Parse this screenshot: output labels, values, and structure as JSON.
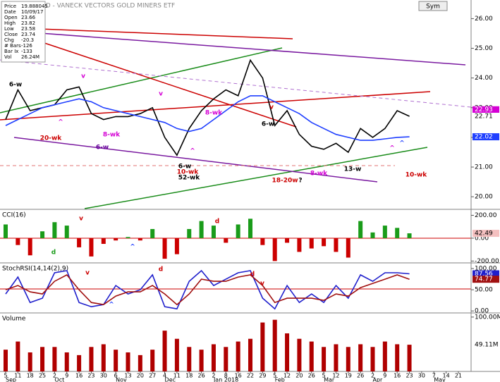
{
  "chart_data": [
    {
      "type": "line",
      "title": "GDX DAILY,D - VANECK VECTORS GOLD MINERS ETF",
      "info": [
        [
          "Price",
          "19.888045"
        ],
        [
          "Date",
          "10/09/17"
        ],
        [
          "Open",
          "23.66"
        ],
        [
          "High",
          "23.82"
        ],
        [
          "Low",
          "23.58"
        ],
        [
          "Close",
          "23.74"
        ],
        [
          "Chg",
          "-20.3"
        ],
        [
          "# Bars",
          "-126"
        ],
        [
          "Bar Ix",
          "-133"
        ],
        [
          "Vol",
          "26.24M"
        ]
      ],
      "button": "Sym",
      "ylim": [
        19.6,
        26.2
      ],
      "yticks": [
        {
          "value": 20,
          "label": "20.00"
        },
        {
          "value": 21,
          "label": "21.00"
        },
        {
          "value": 22,
          "label": "22.00"
        },
        {
          "value": 23,
          "label": "23.00"
        },
        {
          "value": 24,
          "label": "24.00"
        },
        {
          "value": 25,
          "label": "25.00"
        },
        {
          "value": 26,
          "label": "26.00"
        }
      ],
      "series": [
        {
          "color": "#000000",
          "values": [
            22.6,
            23.6,
            22.9,
            23.0,
            23.1,
            23.6,
            23.7,
            22.8,
            22.6,
            22.7,
            22.7,
            22.8,
            23.0,
            22.0,
            21.4,
            22.3,
            22.9,
            23.3,
            23.6,
            23.4,
            24.6,
            24.0,
            22.4,
            22.9,
            22.1,
            21.7,
            21.6,
            21.8,
            21.5,
            22.3,
            22.0,
            22.3,
            22.9,
            22.71,
            null,
            null,
            null,
            null
          ]
        },
        {
          "color": "#1f3fff",
          "values": [
            22.4,
            22.6,
            22.8,
            23.0,
            23.1,
            23.2,
            23.3,
            23.2,
            23.0,
            22.9,
            22.8,
            22.7,
            22.6,
            22.5,
            22.3,
            22.2,
            22.3,
            22.6,
            22.9,
            23.2,
            23.4,
            23.4,
            23.2,
            23.0,
            22.8,
            22.5,
            22.3,
            22.1,
            22.0,
            21.9,
            21.9,
            21.95,
            22.0,
            22.02,
            null,
            null,
            null,
            null
          ]
        }
      ],
      "markers": [
        {
          "value": 22.93,
          "label": "22.93",
          "color": "#d400d4"
        },
        {
          "value": 22.71,
          "label": "22.71",
          "color": "#ffffff"
        },
        {
          "value": 22.02,
          "label": "22.02",
          "color": "#1f3fff"
        }
      ],
      "annotations": [
        {
          "text": "6-w",
          "color": "#000000"
        },
        {
          "text": "^",
          "color": "#d400d4"
        },
        {
          "text": "20-wk",
          "color": "#cc0000"
        },
        {
          "text": "8-wk",
          "color": "#d400d4"
        },
        {
          "text": "6-w",
          "color": "#660099"
        },
        {
          "text": "6-w",
          "color": "#000000"
        },
        {
          "text": "10-wk",
          "color": "#cc0000"
        },
        {
          "text": "52-wk",
          "color": "#000000"
        },
        {
          "text": "^",
          "color": "#d400d4"
        },
        {
          "text": "v",
          "color": "#d400d4"
        },
        {
          "text": "v",
          "color": "#d400d4"
        },
        {
          "text": "8-wk",
          "color": "#d400d4"
        },
        {
          "text": "6-w",
          "color": "#000000"
        },
        {
          "text": "18-20w",
          "color": "#cc0000"
        },
        {
          "text": "?",
          "color": "#000000"
        },
        {
          "text": "8-wk",
          "color": "#d400d4"
        },
        {
          "text": "13-w",
          "color": "#000000"
        },
        {
          "text": "10-wk",
          "color": "#cc0000"
        },
        {
          "text": "^",
          "color": "#1f3fff"
        },
        {
          "text": "^",
          "color": "#d400d4"
        },
        {
          "text": "v",
          "color": "#cc0000"
        }
      ]
    },
    {
      "type": "bar",
      "title": "CCI(16)",
      "ylim": [
        -210,
        240
      ],
      "yticks": [
        {
          "value": 200,
          "label": "200.00"
        },
        {
          "value": 0,
          "label": "0.00"
        },
        {
          "value": -200,
          "label": "-200.00"
        }
      ],
      "colors": {
        "positive": "#1a9c1a",
        "negative": "#cc0000"
      },
      "values": [
        120,
        -60,
        -150,
        60,
        140,
        110,
        -80,
        -160,
        -50,
        -20,
        10,
        -20,
        80,
        -180,
        -140,
        80,
        150,
        110,
        -40,
        120,
        170,
        -60,
        -200,
        -40,
        -120,
        -90,
        -70,
        -120,
        -170,
        150,
        50,
        110,
        90,
        42.49,
        null,
        null,
        null,
        null
      ],
      "markers": [
        {
          "value": 42.49,
          "label": "42.49",
          "color": "#f4c0c0"
        }
      ],
      "annotations": [
        {
          "text": "v",
          "color": "#cc0000"
        },
        {
          "text": "d",
          "color": "#1a9c1a"
        },
        {
          "text": "^",
          "color": "#1f3fff"
        },
        {
          "text": "d",
          "color": "#cc0000"
        }
      ]
    },
    {
      "type": "line",
      "title": "StochRSI(14,14(2),9)",
      "ylim": [
        -3,
        110
      ],
      "yticks": [
        {
          "value": 100,
          "label": "100.00"
        },
        {
          "value": 50,
          "label": "50.00"
        },
        {
          "value": 0,
          "label": "0.00"
        }
      ],
      "series": [
        {
          "color": "#1f1fcc",
          "values": [
            40,
            80,
            20,
            30,
            90,
            95,
            20,
            10,
            15,
            60,
            40,
            50,
            85,
            10,
            5,
            70,
            95,
            60,
            75,
            90,
            95,
            30,
            5,
            60,
            20,
            40,
            20,
            60,
            30,
            85,
            70,
            90,
            90,
            87.56,
            null,
            null,
            null,
            null
          ]
        },
        {
          "color": "#a01010",
          "values": [
            50,
            60,
            45,
            40,
            70,
            85,
            50,
            20,
            15,
            35,
            45,
            45,
            60,
            40,
            15,
            40,
            75,
            70,
            70,
            80,
            85,
            60,
            20,
            30,
            30,
            30,
            25,
            40,
            35,
            55,
            65,
            75,
            85,
            74.77,
            null,
            null,
            null,
            null
          ]
        }
      ],
      "markers": [
        {
          "value": 87.56,
          "label": "87.56",
          "color": "#1f1fcc"
        },
        {
          "value": 74.77,
          "label": "74.77",
          "color": "#a01010"
        }
      ],
      "annotations": [
        {
          "text": "v",
          "color": "#cc0000"
        },
        {
          "text": "d",
          "color": "#cc0000"
        },
        {
          "text": "^",
          "color": "#1f3fff"
        },
        {
          "text": "d",
          "color": "#cc0000"
        },
        {
          "text": "v",
          "color": "#cc0000"
        }
      ]
    },
    {
      "type": "bar",
      "title": "Volume",
      "ylim": [
        0,
        105
      ],
      "yticks": [
        {
          "value": 100,
          "label": "100.00M"
        }
      ],
      "colors": {
        "positive": "#b00000",
        "negative": "#b00000"
      },
      "values": [
        40,
        55,
        35,
        45,
        45,
        35,
        30,
        45,
        50,
        40,
        35,
        30,
        40,
        75,
        60,
        45,
        40,
        50,
        45,
        55,
        60,
        90,
        95,
        70,
        60,
        55,
        45,
        50,
        45,
        50,
        45,
        55,
        50,
        49.11,
        null,
        null,
        null,
        null
      ],
      "markers": [
        {
          "value": 49.11,
          "label": "49.11M",
          "color": "#ffffff"
        }
      ],
      "annotations": [],
      "categories": [
        "5",
        "11",
        "18",
        "25",
        "2",
        "9",
        "16",
        "23",
        "30",
        "6",
        "13",
        "20",
        "27",
        "4",
        "11",
        "18",
        "26",
        "2",
        "8",
        "16",
        "22",
        "29",
        "5",
        "12",
        "20",
        "26",
        "5",
        "12",
        "19",
        "26",
        "2",
        "9",
        "16",
        "23",
        "30",
        "7",
        "14",
        "21"
      ],
      "month_labels": [
        "Sep",
        null,
        null,
        null,
        "Oct",
        null,
        null,
        null,
        null,
        "Nov",
        null,
        null,
        null,
        "Dec",
        null,
        null,
        null,
        "Jan 2018",
        null,
        null,
        null,
        null,
        "Feb",
        null,
        null,
        null,
        "Mar",
        null,
        null,
        null,
        "Apr",
        null,
        null,
        null,
        null,
        "May",
        null,
        null
      ]
    }
  ]
}
